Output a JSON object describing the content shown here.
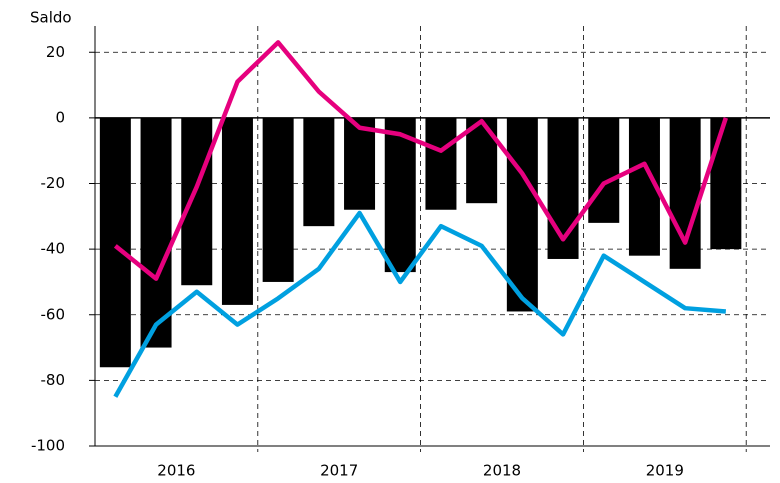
{
  "chart_data": {
    "type": "bar",
    "y_label": "Saldo",
    "categories": [
      null,
      null,
      null,
      null,
      null,
      null,
      null,
      null,
      null,
      null,
      null,
      null,
      null,
      null,
      null,
      null
    ],
    "groups": [
      "2016",
      "2017",
      "2018",
      "2019"
    ],
    "series": [
      {
        "type": "bar",
        "color": "#000000",
        "values": [
          -76,
          -70,
          -51,
          -57,
          -50,
          -33,
          -28,
          -47,
          -28,
          -26,
          -59,
          -43,
          -32,
          -42,
          -46,
          -40
        ]
      },
      {
        "type": "line",
        "color": "#e6007e",
        "values": [
          -39,
          -49,
          -21,
          11,
          23,
          8,
          -3,
          -5,
          -10,
          -1,
          -17,
          -37,
          -20,
          -14,
          -38,
          0
        ]
      },
      {
        "type": "line",
        "color": "#00a0e0",
        "values": [
          -85,
          -63,
          -53,
          -63,
          -55,
          -46,
          -29,
          -50,
          -33,
          -39,
          -55,
          -66,
          -42,
          -50,
          -58,
          -59
        ]
      }
    ],
    "ylim": [
      -100,
      28
    ],
    "yticks": [
      20,
      0,
      -20,
      -40,
      -60,
      -80,
      -100
    ],
    "grid": true
  }
}
